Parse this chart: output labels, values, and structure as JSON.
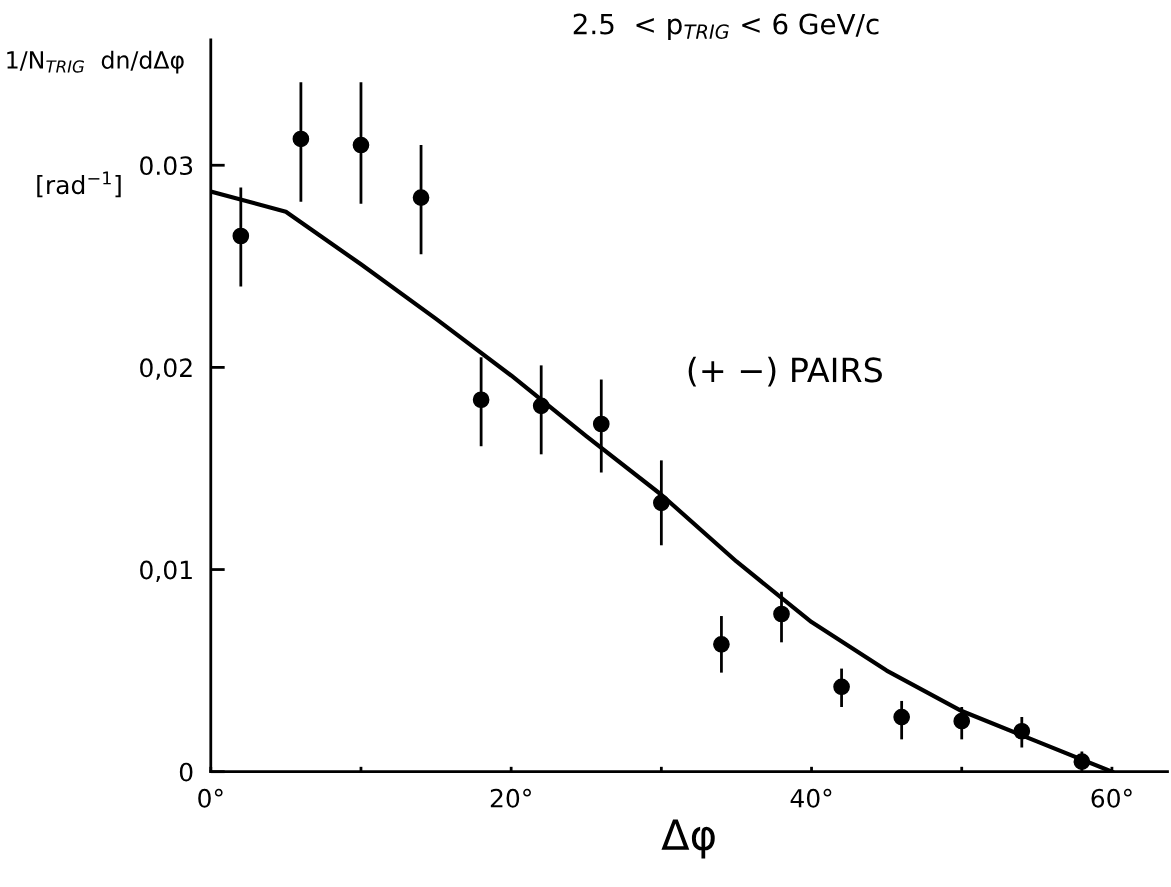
{
  "chart_data": {
    "type": "scatter",
    "title": "2.5  < p$_{TRIG}$ < 6 GeV/c",
    "xlabel": "Δφ",
    "ylabel": "1/N$_{TRIG}$  dn/dΔφ",
    "annotations": [
      "[rad$^{−1}$]",
      "(+ −) PAIRS"
    ],
    "xlim": [
      0,
      63.7
    ],
    "ylim": [
      0,
      0.0362
    ],
    "xticks": [
      {
        "value": 0,
        "label": "0°"
      },
      {
        "value": 10,
        "label": null
      },
      {
        "value": 20,
        "label": "20°"
      },
      {
        "value": 30,
        "label": null
      },
      {
        "value": 40,
        "label": "40°"
      },
      {
        "value": 50,
        "label": null
      },
      {
        "value": 60,
        "label": "60°"
      }
    ],
    "yticks": [
      {
        "value": 0,
        "label": "0"
      },
      {
        "value": 0.01,
        "label": "0,01"
      },
      {
        "value": 0.02,
        "label": "0,02"
      },
      {
        "value": 0.03,
        "label": "0.03"
      }
    ],
    "grid": false,
    "legend": false,
    "marker": "circle",
    "series": [
      {
        "color": "#000000",
        "x": [
          2,
          6,
          10,
          14,
          18,
          22,
          26,
          30,
          34,
          38,
          42,
          46,
          50,
          54,
          58
        ],
        "values": [
          0.0265,
          0.0313,
          0.031,
          0.0284,
          0.0184,
          0.0181,
          0.0172,
          0.0133,
          0.0063,
          0.0078,
          0.0042,
          0.0027,
          0.0025,
          0.002,
          0.0005
        ],
        "errors": [
          [
            0.024,
            0.0289
          ],
          [
            0.0282,
            0.0341
          ],
          [
            0.0281,
            0.0341
          ],
          [
            0.0256,
            0.031
          ],
          [
            0.0161,
            0.0205
          ],
          [
            0.0157,
            0.0201
          ],
          [
            0.0148,
            0.0194
          ],
          [
            0.0112,
            0.0154
          ],
          [
            0.0049,
            0.0077
          ],
          [
            0.0064,
            0.0089
          ],
          [
            0.0032,
            0.0051
          ],
          [
            0.0016,
            0.0035
          ],
          [
            0.0016,
            0.0032
          ],
          [
            0.0012,
            0.0027
          ],
          [
            0.0,
            0.001
          ]
        ]
      },
      {
        "type": "line",
        "color": "#000000",
        "marker": "none",
        "line_style": "solid",
        "x": [
          0,
          5,
          10,
          15,
          20,
          25,
          30,
          35,
          40,
          45,
          50,
          55,
          60
        ],
        "values": [
          0.0287,
          0.0277,
          0.0251,
          0.0224,
          0.0196,
          0.0166,
          0.0137,
          0.0104,
          0.0074,
          0.005,
          0.003,
          0.0015,
          0.0
        ]
      }
    ]
  }
}
